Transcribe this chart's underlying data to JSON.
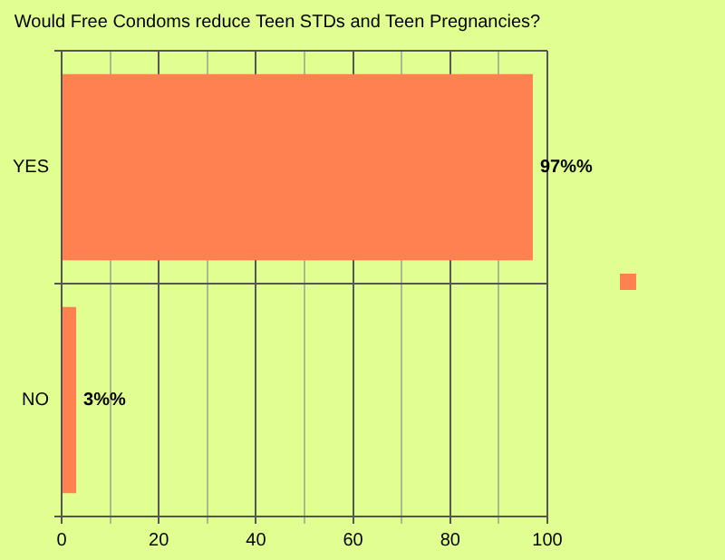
{
  "chart_data": {
    "type": "bar",
    "orientation": "horizontal",
    "title": "Would Free Condoms reduce Teen STDs and Teen Pregnancies?",
    "categories": [
      "YES",
      "NO"
    ],
    "series": [
      {
        "color": "#ff8050",
        "values": [
          97,
          3
        ],
        "value_labels": [
          "97%%",
          "3%%"
        ]
      }
    ],
    "xlim": [
      0,
      100
    ],
    "xticks": [
      0,
      {
        "value": 10,
        "label": null
      },
      20,
      {
        "value": 30,
        "label": null
      },
      40,
      {
        "value": 50,
        "label": null
      },
      60,
      {
        "value": 70,
        "label": null
      },
      80,
      {
        "value": 90,
        "label": null
      },
      100
    ],
    "grid": true,
    "legend": false
  }
}
